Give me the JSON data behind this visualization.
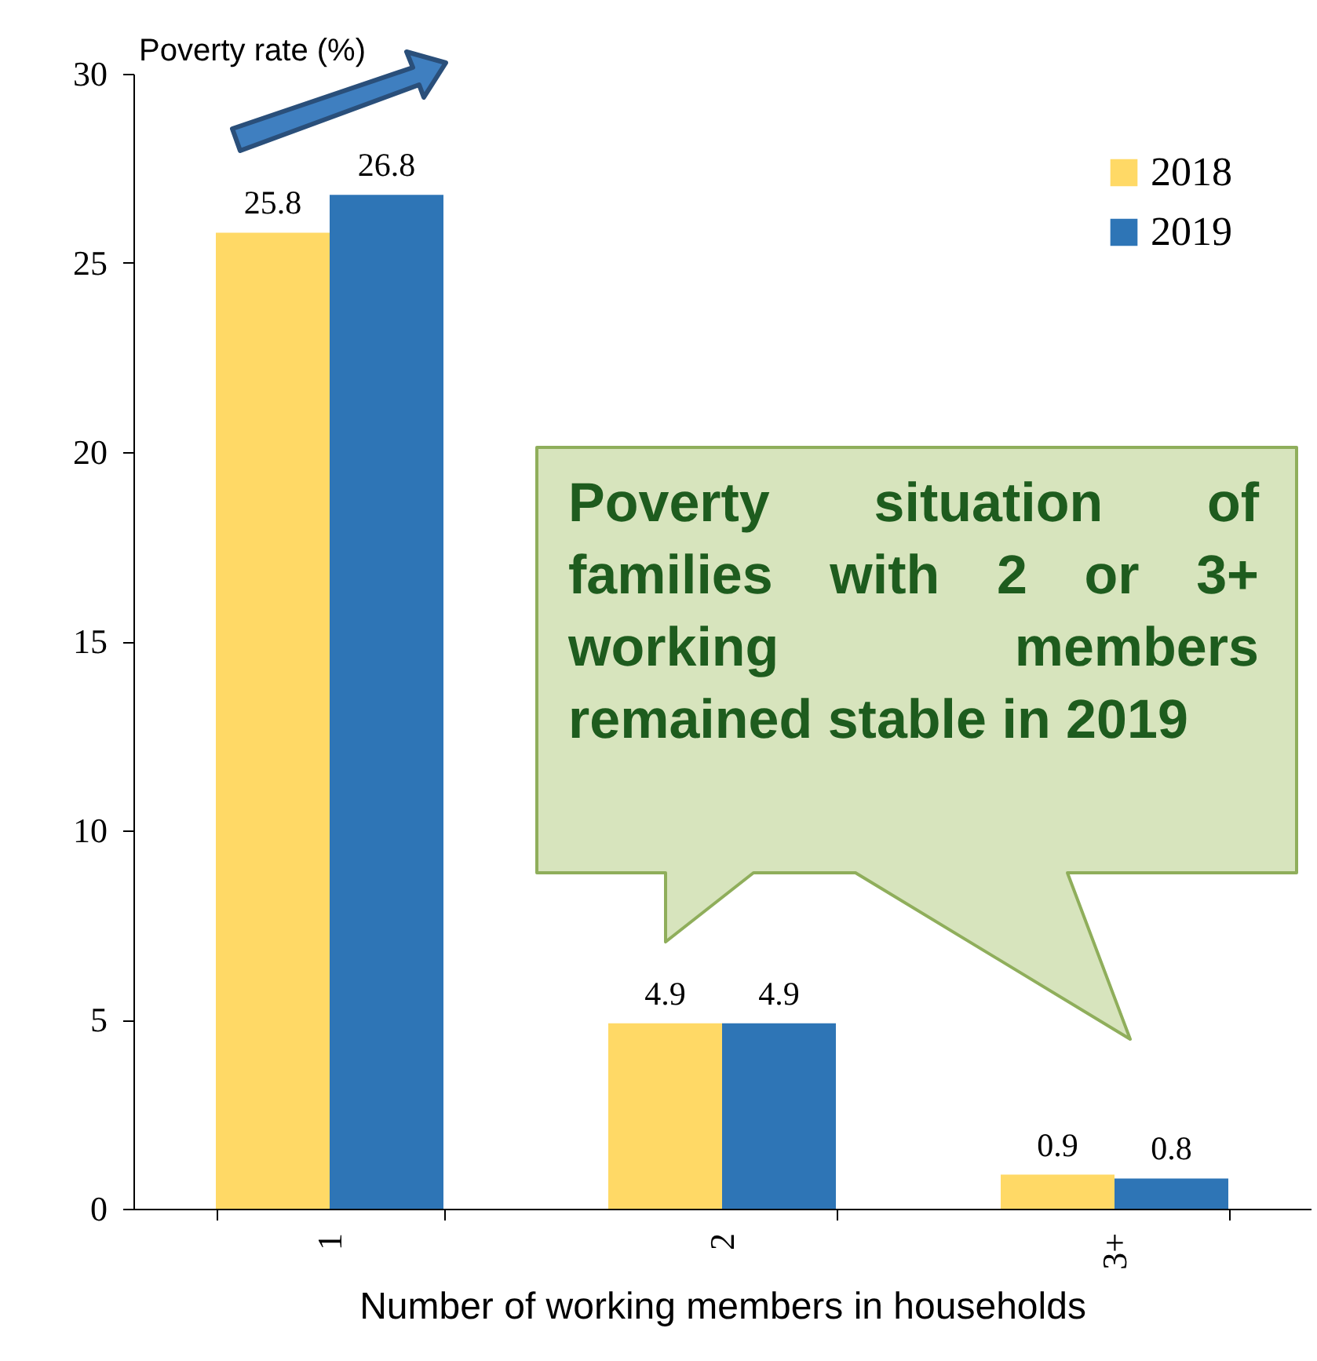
{
  "chart_data": {
    "type": "bar",
    "ylabel": "Poverty rate (%)",
    "xlabel": "Number of working members in households",
    "categories": [
      "1",
      "2",
      "3+"
    ],
    "series": [
      {
        "name": "2018",
        "color": "#ffd966",
        "values": [
          25.8,
          4.9,
          0.9
        ]
      },
      {
        "name": "2019",
        "color": "#2e75b6",
        "values": [
          26.8,
          4.9,
          0.8
        ]
      }
    ],
    "ylim": [
      0,
      30
    ],
    "yticks": [
      0,
      5,
      10,
      15,
      20,
      25,
      30
    ],
    "grid": false,
    "legend": "top right",
    "data_labels": true,
    "annotations": [
      "Poverty situation of families with 2 or 3+ working members remained stable in 2019"
    ]
  }
}
